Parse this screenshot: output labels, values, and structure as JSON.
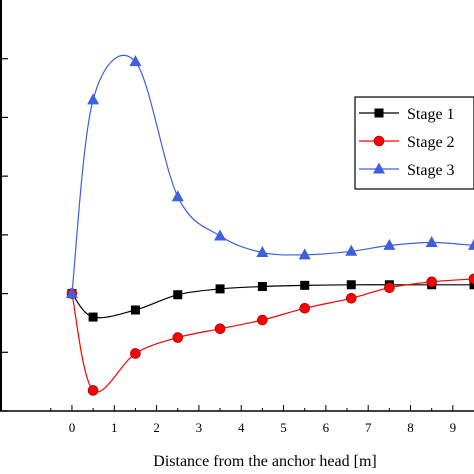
{
  "chart_data": {
    "type": "line",
    "title": "",
    "xlabel": "Distance from the anchor head [m]",
    "ylabel": "",
    "xlim": [
      -1.7,
      9.5
    ],
    "ylim": [
      0,
      7
    ],
    "x_ticks": [
      0,
      1,
      2,
      3,
      4,
      5,
      6,
      7,
      8,
      9
    ],
    "x_tick_labels": [
      "0",
      "1",
      "2",
      "3",
      "4",
      "5",
      "6",
      "7",
      "8",
      "9"
    ],
    "y_ticks": [
      0,
      1,
      2,
      3,
      4,
      5,
      6
    ],
    "grid": false,
    "legend_position": "top-right",
    "series": [
      {
        "name": "Stage 1",
        "color": "#000000",
        "marker": "square",
        "x": [
          0,
          0.5,
          1.5,
          2.5,
          3.5,
          4.5,
          5.5,
          6.6,
          7.5,
          8.5,
          9.5
        ],
        "y": [
          2.0,
          1.6,
          1.72,
          1.98,
          2.08,
          2.12,
          2.14,
          2.15,
          2.15,
          2.15,
          2.15
        ]
      },
      {
        "name": "Stage 2",
        "color": "#ff0000",
        "marker": "circle",
        "x": [
          0,
          0.5,
          1.5,
          2.5,
          3.5,
          4.5,
          5.5,
          6.6,
          7.5,
          8.5,
          9.5
        ],
        "y": [
          2.0,
          0.35,
          0.98,
          1.25,
          1.4,
          1.55,
          1.75,
          1.92,
          2.1,
          2.2,
          2.25
        ]
      },
      {
        "name": "Stage 3",
        "color": "#3f5fdf",
        "marker": "triangle",
        "x": [
          0,
          0.5,
          1.5,
          2.5,
          3.5,
          4.5,
          5.5,
          6.6,
          7.5,
          8.5,
          9.5
        ],
        "y": [
          2.0,
          5.3,
          5.95,
          3.65,
          2.98,
          2.7,
          2.66,
          2.72,
          2.82,
          2.87,
          2.82
        ]
      }
    ]
  }
}
